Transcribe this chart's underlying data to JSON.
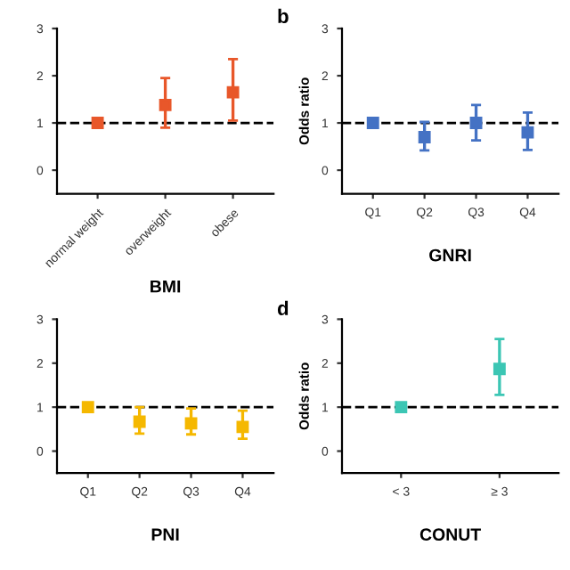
{
  "chart_data": [
    {
      "type": "scatter",
      "xlabel": "BMI",
      "categories": [
        "normal weight",
        "overweight",
        "obese"
      ],
      "series": [
        {
          "color": "#e8572a",
          "values": [
            1.0,
            1.38,
            1.65
          ],
          "errors": [
            null,
            [
              0.9,
              1.95
            ],
            [
              1.05,
              2.35
            ]
          ]
        }
      ],
      "ylim": [
        -0.5,
        3
      ],
      "yticks": [
        0,
        1,
        2,
        3
      ],
      "marker": "square",
      "ref_lines": [
        {
          "axis": "y",
          "value": 1,
          "line_style": "dashed",
          "color": "#000000"
        }
      ],
      "grid": false,
      "legend": false
    },
    {
      "type": "scatter",
      "title": "b",
      "xlabel": "GNRI",
      "ylabel": "Odds ratio",
      "categories": [
        "Q1",
        "Q2",
        "Q3",
        "Q4"
      ],
      "series": [
        {
          "color": "#4472c4",
          "values": [
            1.0,
            0.7,
            1.0,
            0.8
          ],
          "errors": [
            null,
            [
              0.42,
              1.02
            ],
            [
              0.63,
              1.38
            ],
            [
              0.43,
              1.22
            ]
          ]
        }
      ],
      "ylim": [
        -0.5,
        3
      ],
      "yticks": [
        0,
        1,
        2,
        3
      ],
      "marker": "square",
      "ref_lines": [
        {
          "axis": "y",
          "value": 1,
          "line_style": "dashed",
          "color": "#000000"
        }
      ],
      "grid": false,
      "legend": false
    },
    {
      "type": "scatter",
      "xlabel": "PNI",
      "categories": [
        "Q1",
        "Q2",
        "Q3",
        "Q4"
      ],
      "series": [
        {
          "color": "#f5b800",
          "values": [
            1.0,
            0.67,
            0.63,
            0.55
          ],
          "errors": [
            null,
            [
              0.4,
              1.0
            ],
            [
              0.38,
              0.97
            ],
            [
              0.28,
              0.92
            ]
          ]
        }
      ],
      "ylim": [
        -0.5,
        3
      ],
      "yticks": [
        0,
        1,
        2,
        3
      ],
      "marker": "square",
      "ref_lines": [
        {
          "axis": "y",
          "value": 1,
          "line_style": "dashed",
          "color": "#000000"
        }
      ],
      "grid": false,
      "legend": false
    },
    {
      "type": "scatter",
      "title": "d",
      "xlabel": "CONUT",
      "ylabel": "Odds ratio",
      "categories": [
        "< 3",
        "≥ 3"
      ],
      "series": [
        {
          "color": "#3cc6b4",
          "values": [
            1.0,
            1.87
          ],
          "errors": [
            null,
            [
              1.28,
              2.55
            ]
          ]
        }
      ],
      "ylim": [
        -0.5,
        3
      ],
      "yticks": [
        0,
        1,
        2,
        3
      ],
      "marker": "square",
      "ref_lines": [
        {
          "axis": "y",
          "value": 1,
          "line_style": "dashed",
          "color": "#000000"
        }
      ],
      "grid": false,
      "legend": false
    }
  ]
}
